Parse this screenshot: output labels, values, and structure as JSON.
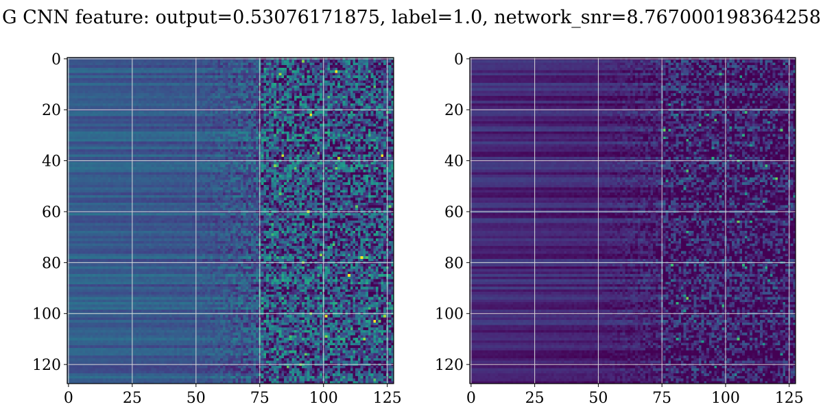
{
  "figure": {
    "title": "G CNN feature: output=0.53076171875, label=1.0, network_snr=8.767000198364258"
  },
  "chart_data": [
    {
      "type": "heatmap",
      "panel": "left",
      "grid_size": [
        128,
        128
      ],
      "xlim": [
        -0.5,
        127.5
      ],
      "ylim": [
        127.5,
        -0.5
      ],
      "xticks": [
        0,
        25,
        50,
        75,
        100,
        125
      ],
      "yticks": [
        0,
        20,
        40,
        60,
        80,
        100,
        120
      ],
      "colormap": "viridis",
      "grid": true,
      "pattern": {
        "smooth_until_col": 50,
        "noisy_from_col": 75,
        "base_level": 0.3,
        "noise_level": 0.32
      }
    },
    {
      "type": "heatmap",
      "panel": "right",
      "grid_size": [
        128,
        128
      ],
      "xlim": [
        -0.5,
        127.5
      ],
      "ylim": [
        127.5,
        -0.5
      ],
      "xticks": [
        0,
        25,
        50,
        75,
        100,
        125
      ],
      "yticks": [
        0,
        20,
        40,
        60,
        80,
        100,
        120
      ],
      "colormap": "viridis",
      "grid": true,
      "pattern": {
        "smooth_until_col": 50,
        "noisy_from_col": 75,
        "base_level": 0.12,
        "noise_level": 0.22
      }
    }
  ],
  "colors": {
    "grid": "#d9d9d9",
    "axes": "#000000",
    "text": "#000000"
  }
}
